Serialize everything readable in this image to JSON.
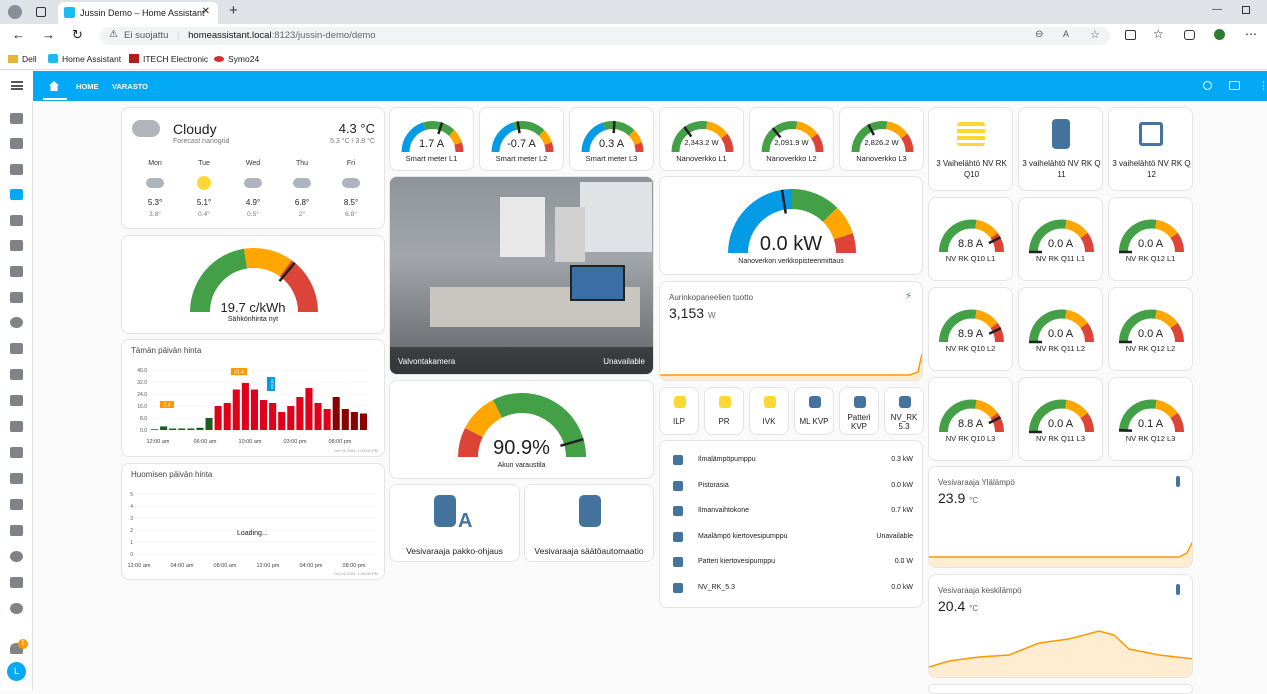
{
  "browser": {
    "tab_title": "Jussin Demo – Home Assistant",
    "security": "Ei suojattu",
    "url_host": "homeassistant.local",
    "url_path": ":8123/jussin-demo/demo",
    "bookmarks": [
      "Dell",
      "Home Assistant",
      "ITECH Electronic",
      "Symo24"
    ]
  },
  "header": {
    "tabs": [
      "HOME",
      "VARASTO"
    ]
  },
  "weather": {
    "condition": "Cloudy",
    "source": "Forecast nanogrid",
    "temp": "4.3 °C",
    "range": "5.3 °C / 3.8 °C",
    "forecast": [
      {
        "day": "Mon",
        "hi": "5.3°",
        "lo": "3.8°",
        "icon": "cloud"
      },
      {
        "day": "Tue",
        "hi": "5.1°",
        "lo": "0.4°",
        "icon": "sun"
      },
      {
        "day": "Wed",
        "hi": "4.9°",
        "lo": "0.5°",
        "icon": "cloud"
      },
      {
        "day": "Thu",
        "hi": "6.8°",
        "lo": "2°",
        "icon": "cloud"
      },
      {
        "day": "Fri",
        "hi": "8.5°",
        "lo": "6.8°",
        "icon": "cloud"
      }
    ]
  },
  "price_gauge": {
    "value": "19.7 c/kWh",
    "label": "Sähkönhinta nyt",
    "fraction": 0.72
  },
  "today_chart": {
    "title": "Tämän päivän hinta",
    "timestamp": "Oct 14 2024, 1:04:00 PM",
    "y_ticks": [
      "40.0",
      "32.0",
      "24.0",
      "16.0",
      "8.0",
      "0.0"
    ],
    "x_ticks": [
      "12:00 am",
      "06:00 am",
      "10:00 am",
      "03:00 pm",
      "08:00 pm"
    ],
    "marker_min": "2.4",
    "marker_max": "31.4",
    "marker_now": "NOW"
  },
  "tomorrow_chart": {
    "title": "Huomisen päivän hinta",
    "timestamp": "Oct 14 2024, 1:04:00 PM",
    "y_ticks": [
      "5",
      "4",
      "3",
      "2",
      "1",
      "0"
    ],
    "x_ticks": [
      "12:00 am",
      "04:00 am",
      "08:00 am",
      "12:00 pm",
      "04:00 pm",
      "08:00 pm"
    ],
    "loading": "Loading..."
  },
  "smart_meters": [
    {
      "value": "1.7 A",
      "label": "Smart meter L1",
      "fraction": 0.6
    },
    {
      "value": "-0.7 A",
      "label": "Smart meter L2",
      "fraction": 0.45
    },
    {
      "value": "0.3 A",
      "label": "Smart meter L3",
      "fraction": 0.52
    }
  ],
  "nanoverkko": [
    {
      "value": "2,343.2 W",
      "label": "Nanoverkko L1",
      "fraction": 0.3
    },
    {
      "value": "2,091.9 W",
      "label": "Nanoverkko L2",
      "fraction": 0.28
    },
    {
      "value": "2,826.2 W",
      "label": "Nanoverkko L3",
      "fraction": 0.35
    }
  ],
  "camera": {
    "name": "Valvontakamera",
    "status": "Unavailable"
  },
  "grid_gauge": {
    "value": "0.0 kW",
    "label": "Nanoverkon verkkopisteenmittaus",
    "fraction": 0.45
  },
  "solar": {
    "title": "Aurinkopaneelien tuotto",
    "value": "3,153",
    "unit": "W"
  },
  "battery_gauge": {
    "value": "90.9%",
    "label": "Akun varaustila",
    "fraction": 0.91
  },
  "boiler_buttons": [
    {
      "label": "Vesivaraaja pakko-ohjaus"
    },
    {
      "label": "Vesivaraaja säätöautomaatio"
    }
  ],
  "mini_buttons": [
    "ILP",
    "PR",
    "IVK",
    "ML KVP",
    "Patteri KVP",
    "NV_RK 5.3"
  ],
  "entities": [
    {
      "name": "Ilmalämpöpumppu",
      "value": "0.3 kW"
    },
    {
      "name": "Pistorasia",
      "value": "0.0 kW"
    },
    {
      "name": "Ilmanvaihtokone",
      "value": "0.7 kW"
    },
    {
      "name": "Maalämpö kiertovesipumppu",
      "value": "Unavailable"
    },
    {
      "name": "Patteri kiertovesipumppu",
      "value": "0.0 W"
    },
    {
      "name": "NV_RK_5.3",
      "value": "0.0 kW"
    }
  ],
  "power_sources": [
    {
      "label": "3 Vaihelähtö NV RK Q10"
    },
    {
      "label": "3 vaihelähtö NV RK Q 11"
    },
    {
      "label": "3 vaihelähtö NV RK Q 12"
    }
  ],
  "rk_gauges": [
    {
      "value": "8.8 A",
      "label": "NV RK Q10 L1",
      "fraction": 0.85
    },
    {
      "value": "0.0 A",
      "label": "NV RK Q11 L1",
      "fraction": 0.0
    },
    {
      "value": "0.0 A",
      "label": "NV RK Q12 L1",
      "fraction": 0.0
    },
    {
      "value": "8.9 A",
      "label": "NV RK Q10 L2",
      "fraction": 0.86
    },
    {
      "value": "0.0 A",
      "label": "NV RK Q11 L2",
      "fraction": 0.0
    },
    {
      "value": "0.0 A",
      "label": "NV RK Q12 L2",
      "fraction": 0.0
    },
    {
      "value": "8.8 A",
      "label": "NV RK Q10 L3",
      "fraction": 0.85
    },
    {
      "value": "0.0 A",
      "label": "NV RK Q11 L3",
      "fraction": 0.0
    },
    {
      "value": "0.1 A",
      "label": "NV RK Q12 L3",
      "fraction": 0.02
    }
  ],
  "boiler_top": {
    "title": "Vesivaraaja Ylälämpö",
    "value": "23.9",
    "unit": "°C"
  },
  "boiler_mid": {
    "title": "Vesivaraaja keskilämpö",
    "value": "20.4",
    "unit": "°C"
  },
  "user_initial": "L",
  "notification_count": "1",
  "colors": {
    "accent": "#03a9f4",
    "green": "#43a047",
    "yellow": "#ffa600",
    "red": "#db4437",
    "blue": "#039be5",
    "price_red": "#e0001a",
    "price_green": "#1b5e20"
  }
}
